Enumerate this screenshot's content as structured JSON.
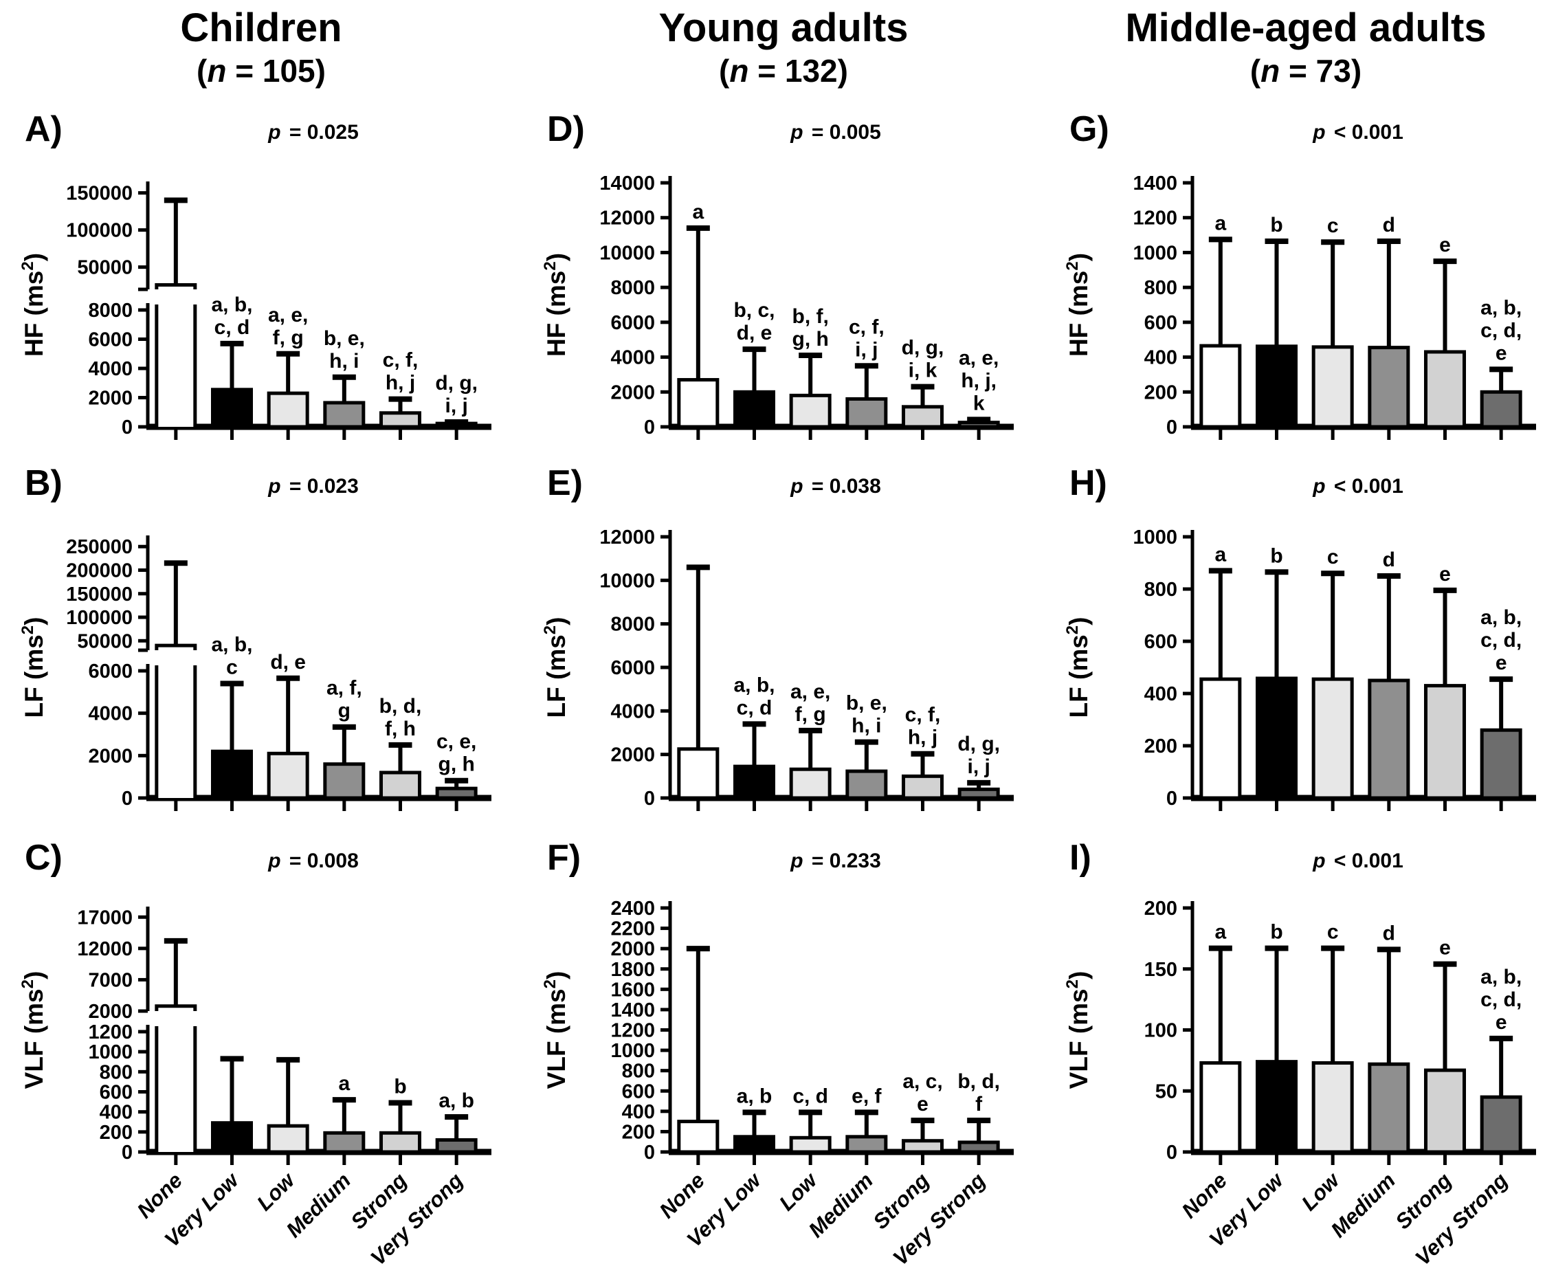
{
  "columns": [
    {
      "title": "Children",
      "subtitle_parts": [
        "(",
        "n",
        " = 105)"
      ]
    },
    {
      "title": "Young adults",
      "subtitle_parts": [
        "(",
        "n",
        " = 132)"
      ]
    },
    {
      "title": "Middle-aged adults",
      "subtitle_parts": [
        "(",
        "n",
        " = 73)"
      ]
    }
  ],
  "categories": [
    "None",
    "Very Low",
    "Low",
    "Medium",
    "Strong",
    "Very Strong"
  ],
  "bar_colors": [
    "#ffffff",
    "#000000",
    "#e7e7e7",
    "#8f8f8f",
    "#d2d2d2",
    "#6d6d6d"
  ],
  "chart_data": [
    {
      "type": "bar",
      "letter": "A)",
      "p_parts": [
        "p",
        " = 0.025"
      ],
      "ylabel": {
        "pre": "HF (ms",
        "sup": "2",
        "post": ")"
      },
      "axis": {
        "type": "broken",
        "lower": {
          "ticks": [
            0,
            2000,
            4000,
            6000,
            8000
          ]
        },
        "upper": {
          "min": 20000,
          "max": 158000,
          "ticks": [
            50000,
            100000,
            150000
          ]
        }
      },
      "bars": [
        {
          "label": "None",
          "value": 26000,
          "err": 140000,
          "sig": []
        },
        {
          "label": "Very Low",
          "value": 2550,
          "err": 5700,
          "sig": [
            "a, b,",
            "c, d"
          ]
        },
        {
          "label": "Low",
          "value": 2300,
          "err": 5000,
          "sig": [
            "a, e,",
            "f, g"
          ]
        },
        {
          "label": "Medium",
          "value": 1650,
          "err": 3400,
          "sig": [
            "b, e,",
            "h, i"
          ]
        },
        {
          "label": "Strong",
          "value": 950,
          "err": 1900,
          "sig": [
            "c, f,",
            "h, j"
          ]
        },
        {
          "label": "Very Strong",
          "value": 230,
          "err": 330,
          "sig": [
            "d, g,",
            "i, j"
          ]
        }
      ]
    },
    {
      "type": "bar",
      "letter": "D)",
      "p_parts": [
        "p",
        " = 0.005"
      ],
      "ylabel": {
        "pre": "HF (ms",
        "sup": "2",
        "post": ")"
      },
      "axis": {
        "type": "simple",
        "ticks": [
          0,
          2000,
          4000,
          6000,
          8000,
          10000,
          12000,
          14000
        ]
      },
      "bars": [
        {
          "label": "None",
          "value": 2700,
          "err": 11400,
          "sig": [
            "a"
          ]
        },
        {
          "label": "Very Low",
          "value": 2000,
          "err": 4450,
          "sig": [
            "b, c,",
            "d, e"
          ]
        },
        {
          "label": "Low",
          "value": 1800,
          "err": 4100,
          "sig": [
            "b, f,",
            "g, h"
          ]
        },
        {
          "label": "Medium",
          "value": 1600,
          "err": 3500,
          "sig": [
            "c, f,",
            "i, j"
          ]
        },
        {
          "label": "Strong",
          "value": 1150,
          "err": 2300,
          "sig": [
            "d, g,",
            "i, k"
          ]
        },
        {
          "label": "Very Strong",
          "value": 250,
          "err": 420,
          "sig": [
            "a, e,",
            "h, j,",
            "k"
          ]
        }
      ]
    },
    {
      "type": "bar",
      "letter": "G)",
      "p_parts": [
        "p",
        " < 0.001"
      ],
      "ylabel": {
        "pre": "HF (ms",
        "sup": "2",
        "post": ")"
      },
      "axis": {
        "type": "simple",
        "ticks": [
          0,
          200,
          400,
          600,
          800,
          1000,
          1200,
          1400
        ]
      },
      "bars": [
        {
          "label": "None",
          "value": 465,
          "err": 1075,
          "sig": [
            "a"
          ]
        },
        {
          "label": "Very Low",
          "value": 462,
          "err": 1065,
          "sig": [
            "b"
          ]
        },
        {
          "label": "Low",
          "value": 458,
          "err": 1060,
          "sig": [
            "c"
          ]
        },
        {
          "label": "Medium",
          "value": 455,
          "err": 1065,
          "sig": [
            "d"
          ]
        },
        {
          "label": "Strong",
          "value": 430,
          "err": 950,
          "sig": [
            "e"
          ]
        },
        {
          "label": "Very Strong",
          "value": 200,
          "err": 330,
          "sig": [
            "a, b,",
            "c, d,",
            "e"
          ]
        }
      ]
    },
    {
      "type": "bar",
      "letter": "B)",
      "p_parts": [
        "p",
        " = 0.023"
      ],
      "ylabel": {
        "pre": "LF (ms",
        "sup": "2",
        "post": ")"
      },
      "axis": {
        "type": "broken",
        "lower": {
          "ticks": [
            0,
            2000,
            4000,
            6000
          ]
        },
        "upper": {
          "min": 30000,
          "max": 262000,
          "ticks": [
            50000,
            100000,
            150000,
            200000,
            250000
          ]
        }
      },
      "bars": [
        {
          "label": "None",
          "value": 40000,
          "err": 215000,
          "sig": []
        },
        {
          "label": "Very Low",
          "value": 2200,
          "err": 5400,
          "sig": [
            "a, b,",
            "c"
          ]
        },
        {
          "label": "Low",
          "value": 2100,
          "err": 5650,
          "sig": [
            "d, e"
          ]
        },
        {
          "label": "Medium",
          "value": 1600,
          "err": 3350,
          "sig": [
            "a, f,",
            "g"
          ]
        },
        {
          "label": "Strong",
          "value": 1200,
          "err": 2500,
          "sig": [
            "b, d,",
            "f, h"
          ]
        },
        {
          "label": "Very Strong",
          "value": 450,
          "err": 820,
          "sig": [
            "c, e,",
            "g, h"
          ]
        }
      ]
    },
    {
      "type": "bar",
      "letter": "E)",
      "p_parts": [
        "p",
        " = 0.038"
      ],
      "ylabel": {
        "pre": "LF (ms",
        "sup": "2",
        "post": ")"
      },
      "axis": {
        "type": "simple",
        "ticks": [
          0,
          2000,
          4000,
          6000,
          8000,
          10000,
          12000
        ]
      },
      "bars": [
        {
          "label": "None",
          "value": 2250,
          "err": 10600,
          "sig": []
        },
        {
          "label": "Very Low",
          "value": 1450,
          "err": 3400,
          "sig": [
            "a, b,",
            "c, d"
          ]
        },
        {
          "label": "Low",
          "value": 1320,
          "err": 3100,
          "sig": [
            "a, e,",
            "f, g"
          ]
        },
        {
          "label": "Medium",
          "value": 1230,
          "err": 2570,
          "sig": [
            "b, e,",
            "h, i"
          ]
        },
        {
          "label": "Strong",
          "value": 1000,
          "err": 2030,
          "sig": [
            "c, f,",
            "h, j"
          ]
        },
        {
          "label": "Very Strong",
          "value": 400,
          "err": 700,
          "sig": [
            "d, g,",
            "i, j"
          ]
        }
      ]
    },
    {
      "type": "bar",
      "letter": "H)",
      "p_parts": [
        "p",
        " < 0.001"
      ],
      "ylabel": {
        "pre": "LF (ms",
        "sup": "2",
        "post": ")"
      },
      "axis": {
        "type": "simple",
        "ticks": [
          0,
          200,
          400,
          600,
          800,
          1000
        ]
      },
      "bars": [
        {
          "label": "None",
          "value": 455,
          "err": 870,
          "sig": [
            "a"
          ]
        },
        {
          "label": "Very Low",
          "value": 458,
          "err": 865,
          "sig": [
            "b"
          ]
        },
        {
          "label": "Low",
          "value": 455,
          "err": 860,
          "sig": [
            "c"
          ]
        },
        {
          "label": "Medium",
          "value": 450,
          "err": 850,
          "sig": [
            "d"
          ]
        },
        {
          "label": "Strong",
          "value": 430,
          "err": 795,
          "sig": [
            "e"
          ]
        },
        {
          "label": "Very Strong",
          "value": 260,
          "err": 455,
          "sig": [
            "a, b,",
            "c, d,",
            "e"
          ]
        }
      ]
    },
    {
      "type": "bar",
      "letter": "C)",
      "p_parts": [
        "p",
        " = 0.008"
      ],
      "ylabel": {
        "pre": "VLF (ms",
        "sup": "2",
        "post": ")"
      },
      "axis": {
        "type": "broken",
        "lower": {
          "ticks": [
            0,
            200,
            400,
            600,
            800,
            1000,
            1200
          ]
        },
        "upper": {
          "min": 2000,
          "max": 17800,
          "ticks": [
            2000,
            7000,
            12000,
            17000
          ]
        }
      },
      "bars": [
        {
          "label": "None",
          "value": 2800,
          "err": 13200,
          "sig": []
        },
        {
          "label": "Very Low",
          "value": 290,
          "err": 930,
          "sig": []
        },
        {
          "label": "Low",
          "value": 260,
          "err": 920,
          "sig": []
        },
        {
          "label": "Medium",
          "value": 190,
          "err": 520,
          "sig": [
            "a"
          ]
        },
        {
          "label": "Strong",
          "value": 190,
          "err": 490,
          "sig": [
            "b"
          ]
        },
        {
          "label": "Very Strong",
          "value": 120,
          "err": 350,
          "sig": [
            "a, b"
          ]
        }
      ]
    },
    {
      "type": "bar",
      "letter": "F)",
      "p_parts": [
        "p",
        " = 0.233"
      ],
      "ylabel": {
        "pre": "VLF (ms",
        "sup": "2",
        "post": ")"
      },
      "axis": {
        "type": "simple",
        "ticks": [
          0,
          200,
          400,
          600,
          800,
          1000,
          1200,
          1400,
          1600,
          1800,
          2000,
          2200,
          2400
        ]
      },
      "bars": [
        {
          "label": "None",
          "value": 300,
          "err": 2000,
          "sig": []
        },
        {
          "label": "Very Low",
          "value": 150,
          "err": 390,
          "sig": [
            "a, b"
          ]
        },
        {
          "label": "Low",
          "value": 140,
          "err": 390,
          "sig": [
            "c, d"
          ]
        },
        {
          "label": "Medium",
          "value": 150,
          "err": 390,
          "sig": [
            "e, f"
          ]
        },
        {
          "label": "Strong",
          "value": 110,
          "err": 310,
          "sig": [
            "a, c,",
            "e"
          ]
        },
        {
          "label": "Very Strong",
          "value": 95,
          "err": 310,
          "sig": [
            "b, d,",
            "f"
          ]
        }
      ]
    },
    {
      "type": "bar",
      "letter": "I)",
      "p_parts": [
        "p",
        " < 0.001"
      ],
      "ylabel": {
        "pre": "VLF (ms",
        "sup": "2",
        "post": ")"
      },
      "axis": {
        "type": "simple",
        "ticks": [
          0,
          50,
          100,
          150,
          200
        ]
      },
      "bars": [
        {
          "label": "None",
          "value": 73,
          "err": 167,
          "sig": [
            "a"
          ]
        },
        {
          "label": "Very Low",
          "value": 74,
          "err": 167,
          "sig": [
            "b"
          ]
        },
        {
          "label": "Low",
          "value": 73,
          "err": 167,
          "sig": [
            "c"
          ]
        },
        {
          "label": "Medium",
          "value": 72,
          "err": 166,
          "sig": [
            "d"
          ]
        },
        {
          "label": "Strong",
          "value": 67,
          "err": 154,
          "sig": [
            "e"
          ]
        },
        {
          "label": "Very Strong",
          "value": 45,
          "err": 93,
          "sig": [
            "a, b,",
            "c, d,",
            "e"
          ]
        }
      ]
    }
  ]
}
